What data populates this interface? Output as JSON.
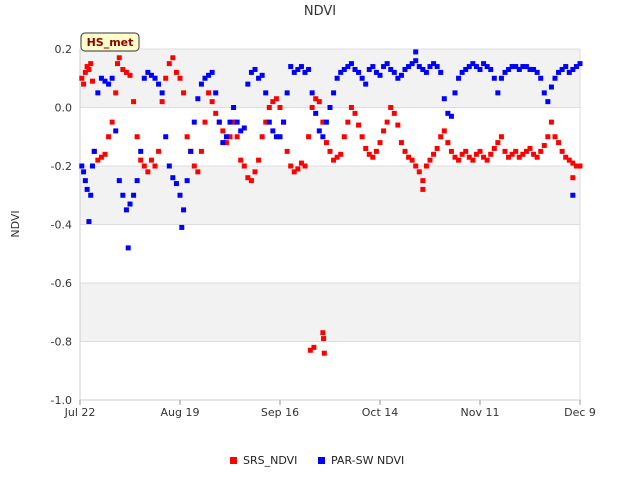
{
  "chart_data": {
    "type": "scatter",
    "title": "NDVI",
    "ylabel": "NDVI",
    "xlabel": "",
    "station_tag": "HS_met",
    "ylim": [
      -1.0,
      0.2
    ],
    "y_ticks": [
      "0.2",
      "0.0",
      "-0.2",
      "-0.4",
      "-0.6",
      "-0.8",
      "-1.0"
    ],
    "y_tick_values": [
      0.2,
      0.0,
      -0.2,
      -0.4,
      -0.6,
      -0.8,
      -1.0
    ],
    "x_range_days": [
      0,
      140
    ],
    "x_ticks": [
      {
        "label": "Jul 22",
        "day": 0
      },
      {
        "label": "Aug 19",
        "day": 28
      },
      {
        "label": "Sep 16",
        "day": 56
      },
      {
        "label": "Oct 14",
        "day": 84
      },
      {
        "label": "Nov 11",
        "day": 112
      },
      {
        "label": "Dec 9",
        "day": 140
      }
    ],
    "grid": true,
    "alternating_bands": true,
    "legend_position": "bottom-center",
    "series": [
      {
        "name": "SRS_NDVI",
        "color": "#ff0000",
        "points": [
          [
            0.5,
            0.1
          ],
          [
            1,
            0.08
          ],
          [
            1.5,
            0.12
          ],
          [
            2,
            0.14
          ],
          [
            2.5,
            0.13
          ],
          [
            3,
            0.15
          ],
          [
            3.5,
            0.09
          ],
          [
            4,
            -0.15
          ],
          [
            5,
            -0.18
          ],
          [
            6,
            -0.17
          ],
          [
            7,
            -0.16
          ],
          [
            8,
            -0.1
          ],
          [
            9,
            -0.05
          ],
          [
            10,
            0.05
          ],
          [
            10.5,
            0.15
          ],
          [
            11,
            0.17
          ],
          [
            12,
            0.13
          ],
          [
            13,
            0.12
          ],
          [
            14,
            0.11
          ],
          [
            15,
            0.02
          ],
          [
            16,
            -0.1
          ],
          [
            17,
            -0.18
          ],
          [
            18,
            -0.2
          ],
          [
            19,
            -0.22
          ],
          [
            20,
            -0.18
          ],
          [
            21,
            -0.2
          ],
          [
            22,
            -0.15
          ],
          [
            23,
            0.02
          ],
          [
            24,
            0.1
          ],
          [
            25,
            0.15
          ],
          [
            26,
            0.17
          ],
          [
            27,
            0.12
          ],
          [
            28,
            0.1
          ],
          [
            29,
            0.05
          ],
          [
            30,
            -0.1
          ],
          [
            31,
            -0.15
          ],
          [
            32,
            -0.2
          ],
          [
            33,
            -0.22
          ],
          [
            34,
            -0.15
          ],
          [
            35,
            -0.05
          ],
          [
            36,
            0.05
          ],
          [
            37,
            0.02
          ],
          [
            38,
            -0.02
          ],
          [
            39,
            -0.05
          ],
          [
            40,
            -0.08
          ],
          [
            41,
            -0.12
          ],
          [
            42,
            -0.1
          ],
          [
            43,
            -0.05
          ],
          [
            44,
            -0.1
          ],
          [
            45,
            -0.18
          ],
          [
            46,
            -0.2
          ],
          [
            47,
            -0.24
          ],
          [
            48,
            -0.25
          ],
          [
            49,
            -0.22
          ],
          [
            50,
            -0.18
          ],
          [
            51,
            -0.1
          ],
          [
            52,
            -0.05
          ],
          [
            53,
            0.0
          ],
          [
            54,
            0.02
          ],
          [
            55,
            0.03
          ],
          [
            56,
            0.0
          ],
          [
            57,
            -0.05
          ],
          [
            58,
            -0.15
          ],
          [
            59,
            -0.2
          ],
          [
            60,
            -0.22
          ],
          [
            61,
            -0.21
          ],
          [
            62,
            -0.19
          ],
          [
            63,
            -0.2
          ],
          [
            64,
            -0.1
          ],
          [
            65,
            0.0
          ],
          [
            66,
            0.03
          ],
          [
            67,
            0.02
          ],
          [
            68,
            -0.05
          ],
          [
            69,
            -0.12
          ],
          [
            70,
            -0.15
          ],
          [
            71,
            -0.18
          ],
          [
            72,
            -0.17
          ],
          [
            73,
            -0.16
          ],
          [
            74,
            -0.1
          ],
          [
            75,
            -0.05
          ],
          [
            76,
            0.0
          ],
          [
            77,
            -0.02
          ],
          [
            78,
            -0.06
          ],
          [
            79,
            -0.1
          ],
          [
            80,
            -0.14
          ],
          [
            81,
            -0.16
          ],
          [
            82,
            -0.17
          ],
          [
            83,
            -0.15
          ],
          [
            84,
            -0.12
          ],
          [
            85,
            -0.08
          ],
          [
            86,
            -0.05
          ],
          [
            87,
            0.0
          ],
          [
            88,
            -0.02
          ],
          [
            89,
            -0.06
          ],
          [
            90,
            -0.12
          ],
          [
            91,
            -0.15
          ],
          [
            92,
            -0.17
          ],
          [
            93,
            -0.18
          ],
          [
            94,
            -0.2
          ],
          [
            95,
            -0.22
          ],
          [
            96,
            -0.25
          ],
          [
            97,
            -0.2
          ],
          [
            98,
            -0.18
          ],
          [
            99,
            -0.16
          ],
          [
            100,
            -0.14
          ],
          [
            101,
            -0.1
          ],
          [
            102,
            -0.08
          ],
          [
            103,
            -0.12
          ],
          [
            104,
            -0.15
          ],
          [
            105,
            -0.17
          ],
          [
            106,
            -0.18
          ],
          [
            107,
            -0.16
          ],
          [
            108,
            -0.15
          ],
          [
            109,
            -0.17
          ],
          [
            110,
            -0.18
          ],
          [
            111,
            -0.16
          ],
          [
            112,
            -0.15
          ],
          [
            113,
            -0.17
          ],
          [
            114,
            -0.18
          ],
          [
            115,
            -0.16
          ],
          [
            116,
            -0.14
          ],
          [
            117,
            -0.12
          ],
          [
            118,
            -0.1
          ],
          [
            119,
            -0.15
          ],
          [
            120,
            -0.17
          ],
          [
            121,
            -0.16
          ],
          [
            122,
            -0.15
          ],
          [
            123,
            -0.17
          ],
          [
            124,
            -0.16
          ],
          [
            125,
            -0.15
          ],
          [
            126,
            -0.14
          ],
          [
            127,
            -0.16
          ],
          [
            128,
            -0.17
          ],
          [
            129,
            -0.15
          ],
          [
            130,
            -0.13
          ],
          [
            131,
            -0.1
          ],
          [
            132,
            -0.05
          ],
          [
            133,
            -0.1
          ],
          [
            134,
            -0.12
          ],
          [
            135,
            -0.15
          ],
          [
            136,
            -0.17
          ],
          [
            137,
            -0.18
          ],
          [
            138,
            -0.19
          ],
          [
            139,
            -0.2
          ],
          [
            140,
            -0.2
          ],
          [
            64.5,
            -0.83
          ],
          [
            65.5,
            -0.82
          ],
          [
            68,
            -0.77
          ],
          [
            68.2,
            -0.79
          ],
          [
            68.4,
            -0.84
          ],
          [
            96,
            -0.28
          ],
          [
            138,
            -0.24
          ]
        ]
      },
      {
        "name": "PAR-SW NDVI",
        "color": "#0000ff",
        "points": [
          [
            0.5,
            -0.2
          ],
          [
            1,
            -0.22
          ],
          [
            1.5,
            -0.25
          ],
          [
            2,
            -0.28
          ],
          [
            2.5,
            -0.39
          ],
          [
            3,
            -0.3
          ],
          [
            3.5,
            -0.2
          ],
          [
            4,
            -0.15
          ],
          [
            5,
            0.05
          ],
          [
            6,
            0.1
          ],
          [
            7,
            0.09
          ],
          [
            8,
            0.08
          ],
          [
            9,
            0.1
          ],
          [
            10,
            -0.08
          ],
          [
            11,
            -0.25
          ],
          [
            12,
            -0.3
          ],
          [
            13,
            -0.35
          ],
          [
            13.5,
            -0.48
          ],
          [
            14,
            -0.33
          ],
          [
            15,
            -0.3
          ],
          [
            16,
            -0.25
          ],
          [
            17,
            -0.15
          ],
          [
            18,
            0.1
          ],
          [
            19,
            0.12
          ],
          [
            20,
            0.11
          ],
          [
            21,
            0.1
          ],
          [
            22,
            0.08
          ],
          [
            23,
            0.05
          ],
          [
            24,
            -0.1
          ],
          [
            25,
            -0.2
          ],
          [
            26,
            -0.24
          ],
          [
            27,
            -0.26
          ],
          [
            28,
            -0.3
          ],
          [
            28.5,
            -0.41
          ],
          [
            29,
            -0.35
          ],
          [
            30,
            -0.25
          ],
          [
            31,
            -0.15
          ],
          [
            32,
            -0.05
          ],
          [
            33,
            0.03
          ],
          [
            34,
            0.08
          ],
          [
            35,
            0.1
          ],
          [
            36,
            0.11
          ],
          [
            37,
            0.12
          ],
          [
            38,
            0.05
          ],
          [
            39,
            -0.05
          ],
          [
            40,
            -0.12
          ],
          [
            41,
            -0.1
          ],
          [
            42,
            -0.05
          ],
          [
            43,
            0.0
          ],
          [
            44,
            -0.05
          ],
          [
            45,
            -0.08
          ],
          [
            46,
            -0.07
          ],
          [
            47,
            0.08
          ],
          [
            48,
            0.12
          ],
          [
            49,
            0.13
          ],
          [
            50,
            0.1
          ],
          [
            51,
            0.11
          ],
          [
            52,
            0.05
          ],
          [
            53,
            -0.05
          ],
          [
            54,
            -0.08
          ],
          [
            55,
            -0.1
          ],
          [
            56,
            -0.1
          ],
          [
            57,
            -0.05
          ],
          [
            58,
            0.05
          ],
          [
            59,
            0.14
          ],
          [
            60,
            0.12
          ],
          [
            61,
            0.13
          ],
          [
            62,
            0.14
          ],
          [
            63,
            0.12
          ],
          [
            64,
            0.13
          ],
          [
            65,
            0.05
          ],
          [
            66,
            -0.02
          ],
          [
            67,
            -0.08
          ],
          [
            68,
            -0.1
          ],
          [
            69,
            -0.05
          ],
          [
            70,
            0.0
          ],
          [
            71,
            0.05
          ],
          [
            72,
            0.1
          ],
          [
            73,
            0.12
          ],
          [
            74,
            0.13
          ],
          [
            75,
            0.14
          ],
          [
            76,
            0.15
          ],
          [
            77,
            0.13
          ],
          [
            78,
            0.12
          ],
          [
            79,
            0.1
          ],
          [
            80,
            0.08
          ],
          [
            81,
            0.13
          ],
          [
            82,
            0.14
          ],
          [
            83,
            0.12
          ],
          [
            84,
            0.11
          ],
          [
            85,
            0.14
          ],
          [
            86,
            0.15
          ],
          [
            87,
            0.13
          ],
          [
            88,
            0.12
          ],
          [
            89,
            0.1
          ],
          [
            90,
            0.11
          ],
          [
            91,
            0.13
          ],
          [
            92,
            0.14
          ],
          [
            93,
            0.15
          ],
          [
            94,
            0.16
          ],
          [
            95,
            0.14
          ],
          [
            96,
            0.13
          ],
          [
            97,
            0.12
          ],
          [
            98,
            0.14
          ],
          [
            99,
            0.15
          ],
          [
            100,
            0.14
          ],
          [
            101,
            0.12
          ],
          [
            102,
            0.03
          ],
          [
            103,
            -0.02
          ],
          [
            104,
            -0.03
          ],
          [
            105,
            0.05
          ],
          [
            106,
            0.1
          ],
          [
            107,
            0.12
          ],
          [
            108,
            0.13
          ],
          [
            109,
            0.14
          ],
          [
            110,
            0.15
          ],
          [
            111,
            0.14
          ],
          [
            112,
            0.13
          ],
          [
            113,
            0.15
          ],
          [
            114,
            0.14
          ],
          [
            115,
            0.13
          ],
          [
            116,
            0.1
          ],
          [
            117,
            0.05
          ],
          [
            118,
            0.1
          ],
          [
            119,
            0.12
          ],
          [
            120,
            0.13
          ],
          [
            121,
            0.14
          ],
          [
            122,
            0.14
          ],
          [
            123,
            0.13
          ],
          [
            124,
            0.14
          ],
          [
            125,
            0.14
          ],
          [
            126,
            0.13
          ],
          [
            127,
            0.13
          ],
          [
            128,
            0.12
          ],
          [
            129,
            0.1
          ],
          [
            130,
            0.05
          ],
          [
            131,
            0.02
          ],
          [
            132,
            0.07
          ],
          [
            133,
            0.1
          ],
          [
            134,
            0.12
          ],
          [
            135,
            0.13
          ],
          [
            136,
            0.14
          ],
          [
            137,
            0.12
          ],
          [
            138,
            0.13
          ],
          [
            139,
            0.14
          ],
          [
            140,
            0.15
          ],
          [
            94,
            0.19
          ],
          [
            138,
            -0.3
          ]
        ]
      }
    ]
  }
}
